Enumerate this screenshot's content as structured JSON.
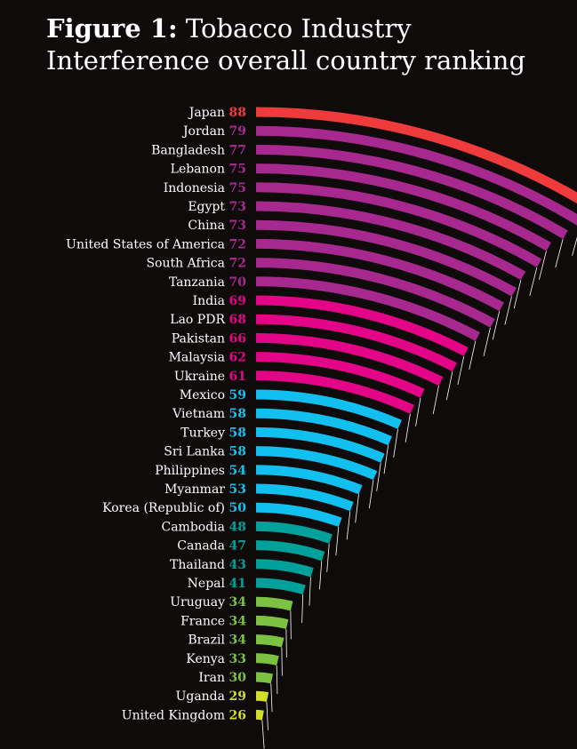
{
  "title": {
    "figure": "Figure 1:",
    "line1": "Tobacco Industry",
    "line2": "Interference overall country ranking"
  },
  "colors": {
    "background": "#0f0b0b",
    "red": "#ef3b3b",
    "purple": "#a7288f",
    "magenta": "#e40488",
    "cyan": "#12c0ef",
    "teal": "#00a19a",
    "green": "#7cc242",
    "yellow": "#d1dd26"
  },
  "chart_data": {
    "type": "bar",
    "subtype": "radial-arc",
    "categories": [
      "Japan",
      "Jordan",
      "Bangladesh",
      "Lebanon",
      "Indonesia",
      "Egypt",
      "China",
      "United States of America",
      "South Africa",
      "Tanzania",
      "India",
      "Lao PDR",
      "Pakistan",
      "Malaysia",
      "Ukraine",
      "Mexico",
      "Vietnam",
      "Turkey",
      "Sri Lanka",
      "Philippines",
      "Myanmar",
      "Korea (Republic of)",
      "Cambodia",
      "Canada",
      "Thailand",
      "Nepal",
      "Uruguay",
      "France",
      "Brazil",
      "Kenya",
      "Iran",
      "Uganda",
      "United Kingdom"
    ],
    "values": [
      88,
      79,
      77,
      75,
      75,
      73,
      73,
      72,
      72,
      70,
      69,
      68,
      66,
      62,
      61,
      59,
      58,
      58,
      58,
      54,
      53,
      50,
      48,
      47,
      43,
      41,
      34,
      34,
      34,
      33,
      30,
      29,
      26
    ],
    "color_keys": [
      "red",
      "purple",
      "purple",
      "purple",
      "purple",
      "purple",
      "purple",
      "purple",
      "purple",
      "purple",
      "magenta",
      "magenta",
      "magenta",
      "magenta",
      "magenta",
      "cyan",
      "cyan",
      "cyan",
      "cyan",
      "cyan",
      "cyan",
      "cyan",
      "teal",
      "teal",
      "teal",
      "teal",
      "green",
      "green",
      "green",
      "green",
      "green",
      "yellow",
      "yellow"
    ],
    "scale_max": 100,
    "legend": "none",
    "grid": false
  }
}
